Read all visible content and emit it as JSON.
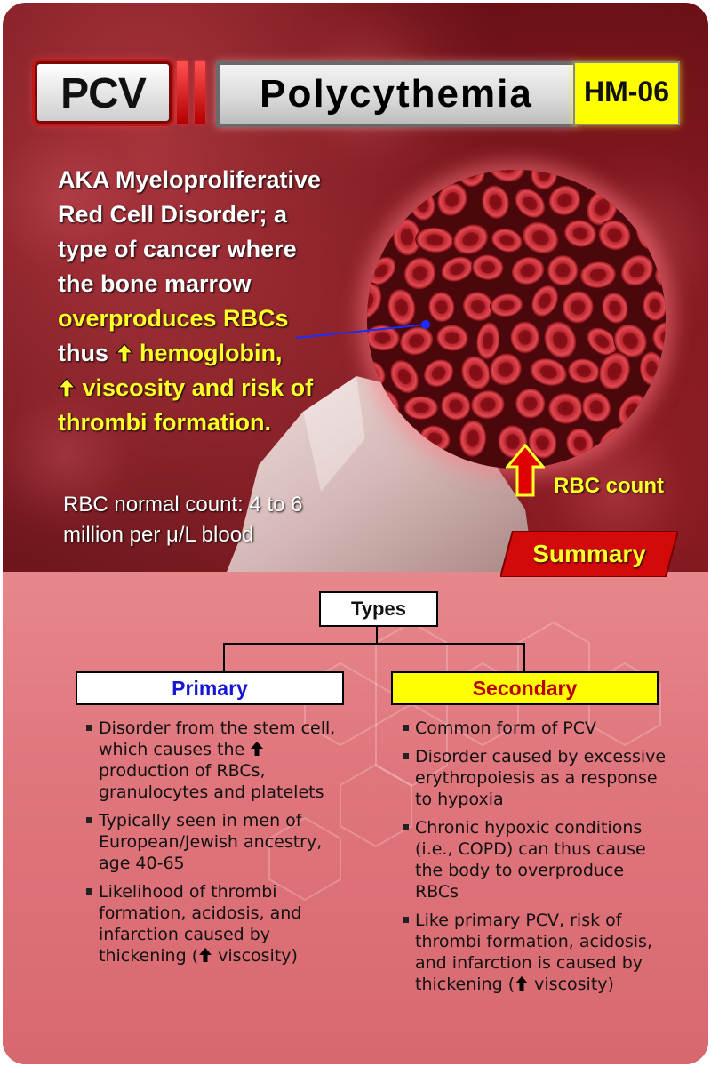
{
  "header": {
    "badge": "PCV",
    "title": "Polycythemia",
    "code": "HM-06"
  },
  "intro": {
    "line1": "AKA Myeloproliferative",
    "line2": "Red Cell Disorder; a",
    "line3": "type of cancer where",
    "line4": "the bone marrow",
    "line5": "overproduces RBCs",
    "line6_prefix": "thus",
    "line6_suffix": "hemoglobin,",
    "line7": "viscosity and risk of",
    "line8": "thrombi formation."
  },
  "normal_count": {
    "line1": "RBC normal count: 4 to 6",
    "line2": "million per μ/L blood"
  },
  "rbc_label": "RBC count",
  "summary_label": "Summary",
  "types": {
    "title": "Types",
    "primary": {
      "label": "Primary",
      "items": [
        [
          "Disorder from the stem cell, which causes the",
          "production of RBCs, granulocytes and platelets"
        ],
        [
          "Typically seen in men of European/Jewish ancestry, age 40-65",
          ""
        ],
        [
          "Likelihood of thrombi formation, acidosis, and infarction caused by thickening (",
          "viscosity)"
        ]
      ]
    },
    "secondary": {
      "label": "Secondary",
      "items": [
        [
          "Common form of PCV",
          ""
        ],
        [
          "Disorder caused by excessive erythropoiesis as a response to hypoxia",
          ""
        ],
        [
          "Chronic hypoxic conditions (i.e., COPD) can thus cause the body to overproduce RBCs",
          ""
        ],
        [
          "Like primary PCV, risk of thrombi formation, acidosis, and infarction is caused by thickening (",
          "viscosity)"
        ]
      ]
    }
  },
  "colors": {
    "highlight": "#ffff2a",
    "primary_label": "#1616d6",
    "secondary_label": "#b80000",
    "secondary_box": "#ffff00",
    "lower_panel": "#e0767d"
  }
}
